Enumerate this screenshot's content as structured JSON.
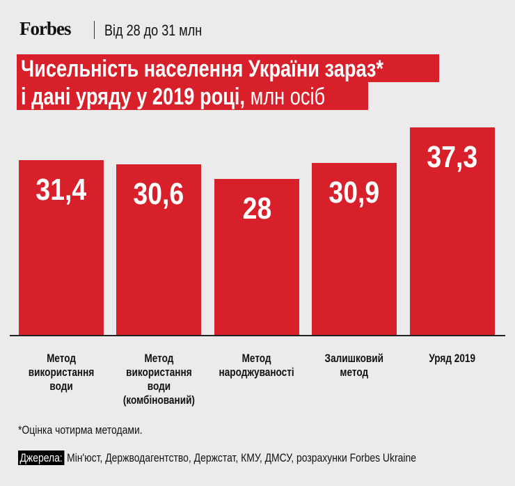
{
  "header": {
    "logo": "Forbes",
    "subtitle": "Від 28 до 31 млн"
  },
  "chart_data": {
    "type": "bar",
    "title_line1": "Чисельність населення України зараз*",
    "title_line2": "і дані уряду у 2019 році,",
    "unit": "млн осіб",
    "categories": [
      "Метод\nвикористання\nводи",
      "Метод\nвикористання\nводи\n(комбінований)",
      "Метод\nнароджуваності",
      "Залишковий\nметод",
      "Уряд 2019"
    ],
    "values": [
      31.4,
      30.6,
      28,
      30.9,
      37.3
    ],
    "value_labels": [
      "31,4",
      "30,6",
      "28",
      "30,9",
      "37,3"
    ],
    "ylim": [
      0,
      37.3
    ],
    "bar_color": "#d7202a"
  },
  "footnote": "*Оцінка чотирма методами.",
  "sources": {
    "label": "Джерела:",
    "text": "Мін'юст, Держводагентство, Держстат, КМУ, ДМСУ, розрахунки Forbes Ukraine"
  }
}
